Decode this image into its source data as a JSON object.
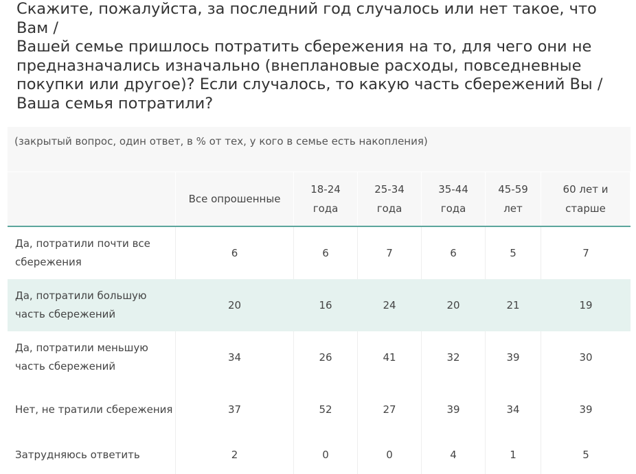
{
  "question": "Скажите, пожалуйста, за последний год случалось или нет такое, что Вам /\nВашей семье пришлось потратить сбережения на то, для чего они не\nпредназначались изначально (внеплановые расходы, повседневные\nпокупки или другое)? Если случалось, то какую часть сбережений Вы /\nВаша семья потратили?",
  "subtitle": "(закрытый вопрос, один ответ, в % от тех, у кого в семье есть накопления)",
  "table": {
    "headers": [
      "",
      "Все опрошенные",
      "18-24\nгода",
      "25-34\nгода",
      "35-44\nгода",
      "45-59\nлет",
      "60 лет и\nстарше"
    ],
    "rows": [
      {
        "label": "Да, потратили почти все сбережения",
        "values": [
          "6",
          "6",
          "7",
          "6",
          "5",
          "7"
        ]
      },
      {
        "label": "Да, потратили большую часть сбережений",
        "values": [
          "20",
          "16",
          "24",
          "20",
          "21",
          "19"
        ]
      },
      {
        "label": "Да, потратили меньшую часть сбережений",
        "values": [
          "34",
          "26",
          "41",
          "32",
          "39",
          "30"
        ]
      },
      {
        "label": "Нет, не тратили сбережения",
        "values": [
          "37",
          "52",
          "27",
          "39",
          "34",
          "39"
        ]
      },
      {
        "label": "Затрудняюсь ответить",
        "values": [
          "2",
          "0",
          "0",
          "4",
          "1",
          "5"
        ]
      }
    ]
  },
  "colors": {
    "accent_line": "#5ba59c",
    "highlight_row": "#e5f2ef",
    "band": "#f7f7f7"
  }
}
